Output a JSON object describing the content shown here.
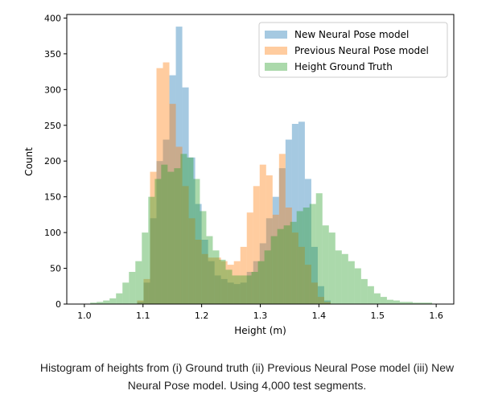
{
  "caption": {
    "line1": "Histogram of heights from (i) Ground truth (ii) Previous Neural Pose model (iii) New",
    "line2": "Neural Pose model. Using 4,000 test segments."
  },
  "chart_data": {
    "type": "bar",
    "xlabel": "Height (m)",
    "ylabel": "Count",
    "xlim": [
      0.97,
      1.63
    ],
    "ylim": [
      0,
      405
    ],
    "xticks": [
      "1.0",
      "1.1",
      "1.2",
      "1.3",
      "1.4",
      "1.5",
      "1.6"
    ],
    "yticks": [
      "0",
      "50",
      "100",
      "150",
      "200",
      "250",
      "300",
      "350",
      "400"
    ],
    "grid": false,
    "legend_position": "top-right",
    "series": [
      {
        "name": "New Neural Pose model",
        "color": "#1f77b4",
        "bins": [
          [
            1.09,
            1.101,
            3
          ],
          [
            1.101,
            1.112,
            30
          ],
          [
            1.112,
            1.123,
            120
          ],
          [
            1.123,
            1.134,
            200
          ],
          [
            1.134,
            1.145,
            230
          ],
          [
            1.145,
            1.156,
            320
          ],
          [
            1.156,
            1.167,
            388
          ],
          [
            1.167,
            1.178,
            303
          ],
          [
            1.178,
            1.189,
            205
          ],
          [
            1.189,
            1.2,
            140
          ],
          [
            1.2,
            1.211,
            90
          ],
          [
            1.211,
            1.222,
            60
          ],
          [
            1.222,
            1.233,
            40
          ],
          [
            1.233,
            1.244,
            35
          ],
          [
            1.244,
            1.255,
            30
          ],
          [
            1.255,
            1.266,
            28
          ],
          [
            1.266,
            1.277,
            30
          ],
          [
            1.277,
            1.288,
            45
          ],
          [
            1.288,
            1.299,
            60
          ],
          [
            1.299,
            1.31,
            85
          ],
          [
            1.31,
            1.321,
            120
          ],
          [
            1.321,
            1.332,
            150
          ],
          [
            1.332,
            1.343,
            190
          ],
          [
            1.343,
            1.354,
            230
          ],
          [
            1.354,
            1.365,
            252
          ],
          [
            1.365,
            1.376,
            255
          ],
          [
            1.376,
            1.387,
            175
          ],
          [
            1.387,
            1.398,
            80
          ],
          [
            1.398,
            1.409,
            25
          ],
          [
            1.409,
            1.42,
            5
          ]
        ]
      },
      {
        "name": "Previous Neural Pose model",
        "color": "#ff7f0e",
        "bins": [
          [
            1.09,
            1.101,
            5
          ],
          [
            1.101,
            1.112,
            35
          ],
          [
            1.112,
            1.123,
            185
          ],
          [
            1.123,
            1.134,
            330
          ],
          [
            1.134,
            1.145,
            338
          ],
          [
            1.145,
            1.156,
            280
          ],
          [
            1.156,
            1.167,
            220
          ],
          [
            1.167,
            1.178,
            165
          ],
          [
            1.178,
            1.189,
            120
          ],
          [
            1.189,
            1.2,
            90
          ],
          [
            1.2,
            1.211,
            70
          ],
          [
            1.211,
            1.222,
            65
          ],
          [
            1.222,
            1.233,
            65
          ],
          [
            1.233,
            1.244,
            60
          ],
          [
            1.244,
            1.255,
            55
          ],
          [
            1.255,
            1.266,
            60
          ],
          [
            1.266,
            1.277,
            80
          ],
          [
            1.277,
            1.288,
            128
          ],
          [
            1.288,
            1.299,
            165
          ],
          [
            1.299,
            1.31,
            195
          ],
          [
            1.31,
            1.321,
            180
          ],
          [
            1.321,
            1.332,
            125
          ],
          [
            1.332,
            1.343,
            210
          ],
          [
            1.343,
            1.354,
            135
          ],
          [
            1.354,
            1.365,
            100
          ],
          [
            1.365,
            1.376,
            80
          ],
          [
            1.376,
            1.387,
            55
          ],
          [
            1.387,
            1.398,
            30
          ],
          [
            1.398,
            1.409,
            10
          ],
          [
            1.409,
            1.42,
            3
          ]
        ]
      },
      {
        "name": "Height Ground Truth",
        "color": "#2ca02c",
        "bins": [
          [
            1.01,
            1.021,
            2
          ],
          [
            1.021,
            1.032,
            3
          ],
          [
            1.032,
            1.043,
            5
          ],
          [
            1.043,
            1.054,
            8
          ],
          [
            1.054,
            1.065,
            15
          ],
          [
            1.065,
            1.076,
            30
          ],
          [
            1.076,
            1.087,
            45
          ],
          [
            1.087,
            1.098,
            60
          ],
          [
            1.098,
            1.109,
            100
          ],
          [
            1.109,
            1.12,
            150
          ],
          [
            1.12,
            1.131,
            175
          ],
          [
            1.131,
            1.142,
            195
          ],
          [
            1.142,
            1.153,
            185
          ],
          [
            1.153,
            1.164,
            190
          ],
          [
            1.164,
            1.175,
            210
          ],
          [
            1.175,
            1.186,
            205
          ],
          [
            1.186,
            1.197,
            175
          ],
          [
            1.197,
            1.208,
            130
          ],
          [
            1.208,
            1.219,
            95
          ],
          [
            1.219,
            1.23,
            75
          ],
          [
            1.23,
            1.241,
            62
          ],
          [
            1.241,
            1.252,
            48
          ],
          [
            1.252,
            1.263,
            40
          ],
          [
            1.263,
            1.274,
            40
          ],
          [
            1.274,
            1.285,
            40
          ],
          [
            1.285,
            1.296,
            45
          ],
          [
            1.296,
            1.307,
            60
          ],
          [
            1.307,
            1.318,
            75
          ],
          [
            1.318,
            1.329,
            95
          ],
          [
            1.329,
            1.34,
            105
          ],
          [
            1.34,
            1.351,
            110
          ],
          [
            1.351,
            1.362,
            115
          ],
          [
            1.362,
            1.373,
            130
          ],
          [
            1.373,
            1.384,
            135
          ],
          [
            1.384,
            1.395,
            140
          ],
          [
            1.395,
            1.406,
            155
          ],
          [
            1.406,
            1.417,
            110
          ],
          [
            1.417,
            1.428,
            100
          ],
          [
            1.428,
            1.439,
            75
          ],
          [
            1.439,
            1.45,
            70
          ],
          [
            1.45,
            1.461,
            60
          ],
          [
            1.461,
            1.472,
            50
          ],
          [
            1.472,
            1.483,
            35
          ],
          [
            1.483,
            1.494,
            25
          ],
          [
            1.494,
            1.505,
            15
          ],
          [
            1.505,
            1.516,
            10
          ],
          [
            1.516,
            1.527,
            6
          ],
          [
            1.527,
            1.538,
            5
          ],
          [
            1.538,
            1.549,
            3
          ],
          [
            1.549,
            1.56,
            3
          ],
          [
            1.56,
            1.571,
            2
          ],
          [
            1.571,
            1.582,
            2
          ],
          [
            1.582,
            1.593,
            2
          ]
        ]
      }
    ]
  }
}
